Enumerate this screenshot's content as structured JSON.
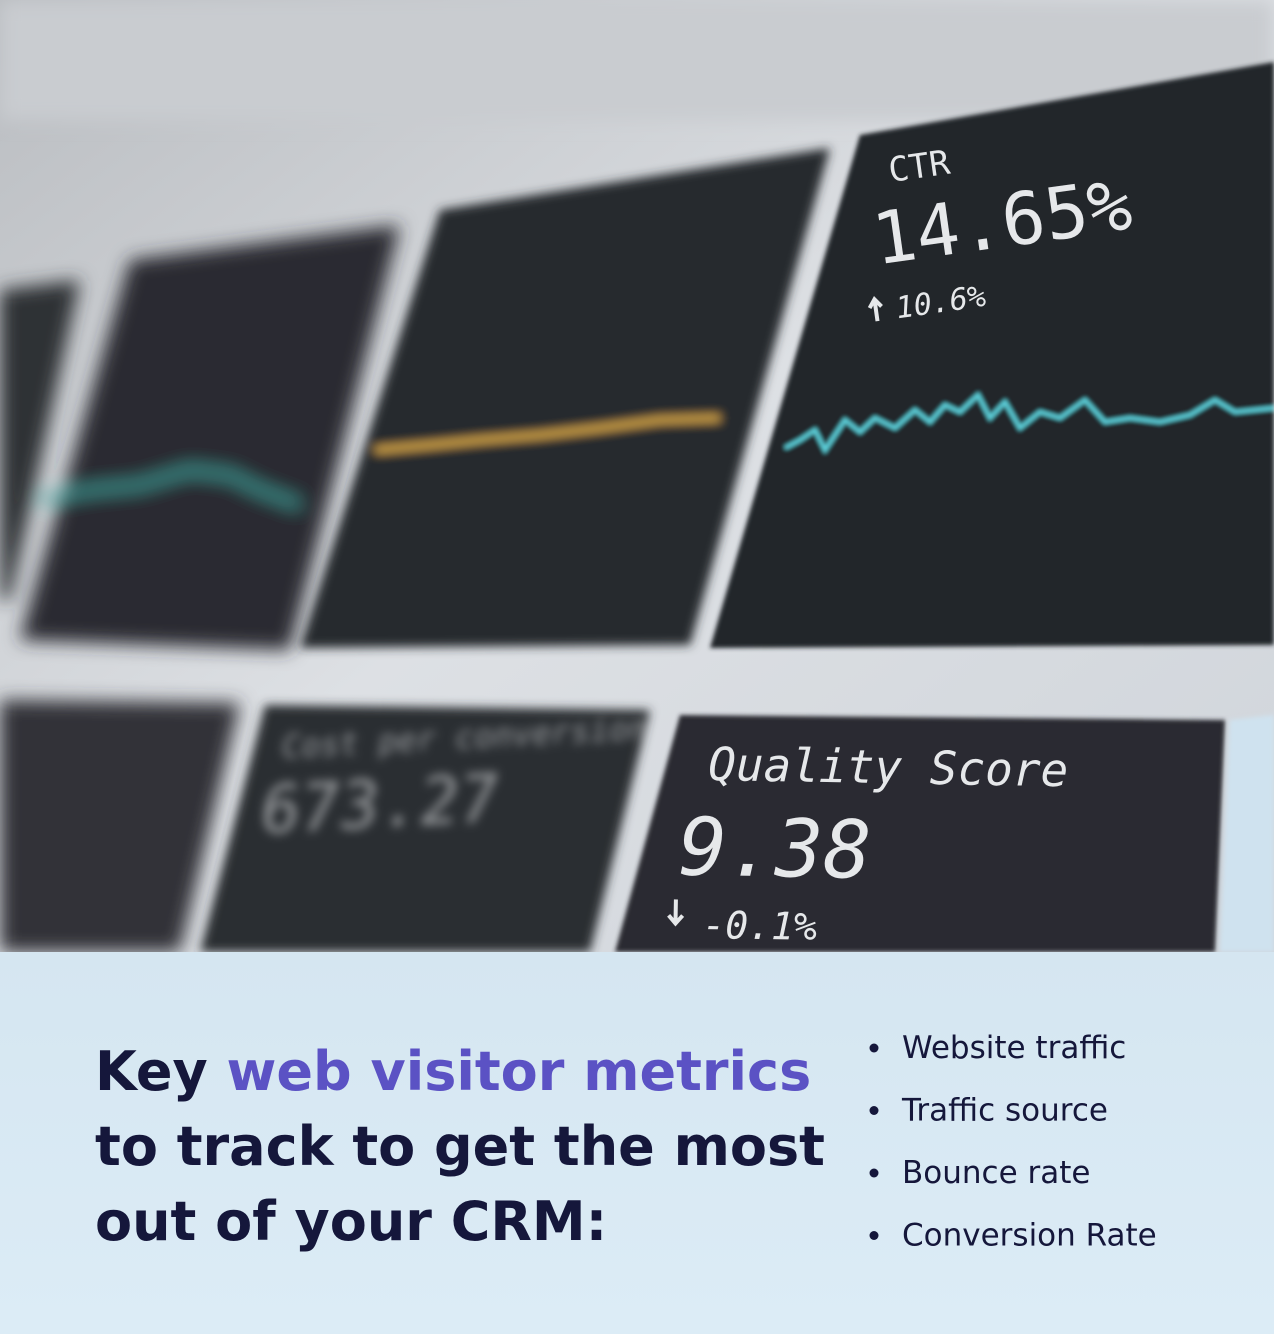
{
  "photo": {
    "tiles": [
      {
        "label": "CTR",
        "value": "14.65%",
        "change": "10.6%"
      },
      {
        "label": "Cost per conversion",
        "value": "673.27"
      },
      {
        "label": "Quality Score",
        "value": "9.38",
        "change": "-0.1%"
      }
    ]
  },
  "heading": {
    "lead": "Key",
    "highlight": "web visitor metrics",
    "rest_line_1": "to track to get the most",
    "rest_line_2": "out of your CRM:"
  },
  "list": [
    "Website traffic",
    "Traffic source",
    "Bounce rate",
    "Conversion Rate"
  ]
}
